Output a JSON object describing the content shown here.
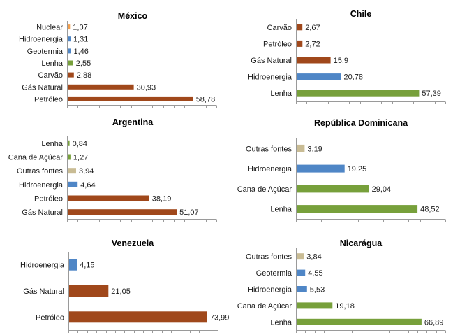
{
  "colors": {
    "brown": "#A0481B",
    "blue": "#4F86C6",
    "green": "#77A03B",
    "tan": "#C9BC94",
    "orange": "#F29E4C"
  },
  "chart_data": [
    {
      "type": "bar",
      "title": "México",
      "categories": [
        "Petróleo",
        "Gás Natural",
        "Carvão",
        "Lenha",
        "Geotermia",
        "Hidroenergia",
        "Nuclear"
      ],
      "values": [
        58.78,
        30.93,
        2.88,
        2.55,
        1.46,
        1.31,
        1.07
      ],
      "labels": [
        "58,78",
        "30,93",
        "2,88",
        "2,55",
        "1,46",
        "1,31",
        "1,07"
      ],
      "colors": [
        "brown",
        "brown",
        "brown",
        "green",
        "blue",
        "blue",
        "orange"
      ],
      "xlim": [
        0,
        70
      ],
      "grid": false
    },
    {
      "type": "bar",
      "title": "Chile",
      "categories": [
        "Lenha",
        "Hidroenergia",
        "Gás Natural",
        "Petróleo",
        "Carvão"
      ],
      "values": [
        57.39,
        20.78,
        15.9,
        2.72,
        2.67
      ],
      "labels": [
        "57,39",
        "20,78",
        "15,9",
        "2,72",
        "2,67"
      ],
      "colors": [
        "green",
        "blue",
        "brown",
        "brown",
        "brown"
      ],
      "xlim": [
        0,
        70
      ],
      "grid": false
    },
    {
      "type": "bar",
      "title": "Argentina",
      "categories": [
        "Gás Natural",
        "Petróleo",
        "Hidroenergia",
        "Outras fontes",
        "Cana de Açúcar",
        "Lenha"
      ],
      "values": [
        51.07,
        38.19,
        4.64,
        3.94,
        1.27,
        0.84
      ],
      "labels": [
        "51,07",
        "38,19",
        "4,64",
        "3,94",
        "1,27",
        "0,84"
      ],
      "colors": [
        "brown",
        "brown",
        "blue",
        "tan",
        "green",
        "green"
      ],
      "xlim": [
        0,
        70
      ],
      "grid": false
    },
    {
      "type": "bar",
      "title": "República Dominicana",
      "categories": [
        "Lenha",
        "Cana de Açúcar",
        "Hidroenergia",
        "Outras fontes"
      ],
      "values": [
        48.52,
        29.04,
        19.25,
        3.19
      ],
      "labels": [
        "48,52",
        "29,04",
        "19,25",
        "3,19"
      ],
      "colors": [
        "green",
        "green",
        "blue",
        "tan"
      ],
      "xlim": [
        0,
        60
      ],
      "grid": false
    },
    {
      "type": "bar",
      "title": "Venezuela",
      "categories": [
        "Petróleo",
        "Gás Natural",
        "Hidroenergia"
      ],
      "values": [
        73.99,
        21.05,
        4.15
      ],
      "labels": [
        "73,99",
        "21,05",
        "4,15"
      ],
      "colors": [
        "brown",
        "brown",
        "blue"
      ],
      "xlim": [
        0,
        80
      ],
      "grid": false
    },
    {
      "type": "bar",
      "title": "Nicarágua",
      "categories": [
        "Lenha",
        "Cana de Açúcar",
        "Hidroenergia",
        "Geotermia",
        "Outras fontes"
      ],
      "values": [
        66.89,
        19.18,
        5.53,
        4.55,
        3.84
      ],
      "labels": [
        "66,89",
        "19,18",
        "5,53",
        "4,55",
        "3,84"
      ],
      "colors": [
        "green",
        "green",
        "blue",
        "blue",
        "tan"
      ],
      "xlim": [
        0,
        80
      ],
      "grid": false
    }
  ]
}
